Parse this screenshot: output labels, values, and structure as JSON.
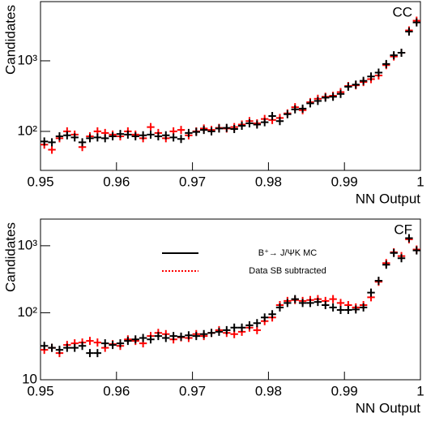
{
  "chart_data": [
    {
      "type": "histogram",
      "label": "CC",
      "xlabel": "NN Output",
      "ylabel": "Candidates",
      "log_y": true,
      "xlim": [
        0.95,
        1
      ],
      "xticks": [
        0.95,
        0.96,
        0.97,
        0.98,
        0.99,
        1
      ],
      "ylim": [
        28,
        6900
      ],
      "yticks": [
        {
          "value": 100,
          "label": "10²"
        },
        {
          "value": 1000,
          "label": "10³"
        }
      ],
      "bins": [
        0.95,
        0.951,
        0.952,
        0.953,
        0.954,
        0.955,
        0.956,
        0.957,
        0.958,
        0.959,
        0.96,
        0.961,
        0.962,
        0.963,
        0.964,
        0.965,
        0.966,
        0.967,
        0.968,
        0.969,
        0.97,
        0.971,
        0.972,
        0.973,
        0.974,
        0.975,
        0.976,
        0.977,
        0.978,
        0.979,
        0.98,
        0.981,
        0.982,
        0.983,
        0.984,
        0.985,
        0.986,
        0.987,
        0.988,
        0.989,
        0.99,
        0.991,
        0.992,
        0.993,
        0.994,
        0.995,
        0.996,
        0.997,
        0.998,
        0.999,
        1
      ],
      "series": [
        {
          "color": "#ff0000",
          "values": [
            65,
            55,
            80,
            100,
            90,
            60,
            85,
            100,
            95,
            90,
            85,
            100,
            90,
            80,
            115,
            95,
            80,
            100,
            105,
            88,
            100,
            110,
            105,
            112,
            110,
            115,
            125,
            140,
            130,
            150,
            145,
            155,
            180,
            220,
            200,
            260,
            290,
            310,
            320,
            360,
            440,
            450,
            500,
            550,
            620,
            870,
            1150,
            1300,
            2700,
            3700
          ]
        },
        {
          "color": "#000000",
          "values": [
            72,
            70,
            85,
            88,
            82,
            70,
            80,
            82,
            80,
            85,
            92,
            90,
            85,
            88,
            90,
            85,
            88,
            82,
            78,
            95,
            98,
            105,
            100,
            110,
            112,
            108,
            120,
            130,
            125,
            135,
            165,
            140,
            175,
            205,
            210,
            250,
            270,
            300,
            310,
            340,
            430,
            460,
            520,
            600,
            680,
            900,
            1200,
            1300,
            2600,
            3500
          ]
        }
      ]
    },
    {
      "type": "histogram",
      "label": "CF",
      "xlabel": "NN Output",
      "ylabel": "Candidates",
      "log_y": true,
      "legend": "upper left",
      "xlim": [
        0.95,
        1
      ],
      "xticks": [
        0.95,
        0.96,
        0.97,
        0.98,
        0.99,
        1
      ],
      "ylim": [
        10,
        2500
      ],
      "yticks": [
        10,
        {
          "value": 100,
          "label": "10²"
        },
        {
          "value": 1000,
          "label": "10³"
        }
      ],
      "bins": [
        0.95,
        0.951,
        0.952,
        0.953,
        0.954,
        0.955,
        0.956,
        0.957,
        0.958,
        0.959,
        0.96,
        0.961,
        0.962,
        0.963,
        0.964,
        0.965,
        0.966,
        0.967,
        0.968,
        0.969,
        0.97,
        0.971,
        0.972,
        0.973,
        0.974,
        0.975,
        0.976,
        0.977,
        0.978,
        0.979,
        0.98,
        0.981,
        0.982,
        0.983,
        0.984,
        0.985,
        0.986,
        0.987,
        0.988,
        0.989,
        0.99,
        0.991,
        0.992,
        0.993,
        0.994,
        0.995,
        0.996,
        0.997,
        0.998,
        0.999,
        1
      ],
      "series": [
        {
          "name": "Data SB subtracted",
          "color": "#ff0000",
          "values": [
            28,
            30,
            25,
            33,
            35,
            36,
            38,
            36,
            30,
            34,
            32,
            40,
            38,
            35,
            45,
            50,
            48,
            40,
            43,
            42,
            48,
            45,
            50,
            55,
            50,
            48,
            52,
            60,
            55,
            75,
            85,
            130,
            150,
            155,
            150,
            155,
            160,
            150,
            160,
            140,
            130,
            120,
            130,
            170,
            290,
            550,
            800,
            700,
            1250,
            880
          ]
        },
        {
          "name": "B⁺→ J/ΨK MC",
          "color": "#000000",
          "values": [
            32,
            30,
            28,
            30,
            30,
            32,
            25,
            25,
            35,
            33,
            35,
            38,
            40,
            42,
            40,
            45,
            42,
            45,
            44,
            46,
            45,
            48,
            50,
            52,
            55,
            60,
            60,
            65,
            70,
            85,
            95,
            120,
            140,
            160,
            140,
            140,
            145,
            130,
            120,
            110,
            110,
            112,
            120,
            200,
            300,
            520,
            780,
            650,
            1300,
            850
          ]
        }
      ]
    }
  ]
}
